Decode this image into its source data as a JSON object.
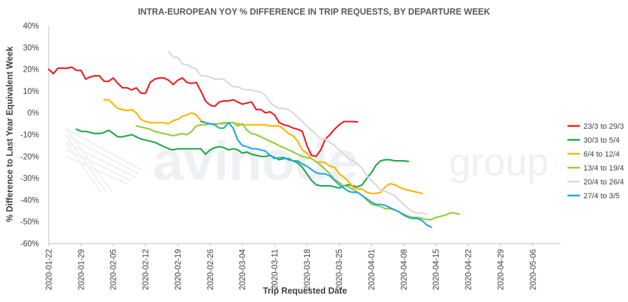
{
  "watermark": {
    "brand": "avinode",
    "suffix": "group"
  },
  "chart_data": {
    "type": "line",
    "title": "INTRA-EUROPEAN YOY % DIFFERENCE IN TRIP REQUESTS, BY DEPARTURE WEEK",
    "xlabel": "Trip Requested Date",
    "ylabel": "% Difference to Last Year Equivalent Week",
    "xlim": [
      "2020-01-22",
      "2020-05-12"
    ],
    "ylim": [
      -60,
      40
    ],
    "x_ticks": [
      "2020-01-22",
      "2020-01-29",
      "2020-02-05",
      "2020-02-12",
      "2020-02-19",
      "2020-02-26",
      "2020-03-04",
      "2020-03-11",
      "2020-03-18",
      "2020-03-25",
      "2020-04-01",
      "2020-04-08",
      "2020-04-15",
      "2020-04-22",
      "2020-04-29",
      "2020-05-06"
    ],
    "y_ticks": [
      40,
      30,
      20,
      10,
      0,
      -10,
      -20,
      -30,
      -40,
      -50,
      -60
    ],
    "y_tick_labels": [
      "40%",
      "30%",
      "20%",
      "10%",
      "0%",
      "-10%",
      "-20%",
      "-30%",
      "-40%",
      "-50%",
      "-60%"
    ],
    "grid": false,
    "legend_position": "right",
    "series": [
      {
        "name": "23/3 to 29/3",
        "color": "#ee1d1d",
        "x_start": "2020-01-22",
        "values": [
          20,
          18,
          20.5,
          20.5,
          20.5,
          21,
          19.5,
          19.5,
          15.5,
          16.5,
          17,
          17,
          14.5,
          14.5,
          16,
          13.5,
          11.5,
          11.5,
          10.5,
          11.5,
          9,
          9,
          14,
          15.5,
          16,
          16,
          15,
          13,
          15,
          16,
          14,
          13.5,
          14,
          10,
          5.5,
          3.5,
          3,
          5,
          5.5,
          5.5,
          6,
          5,
          4,
          4.5,
          5,
          1.5,
          1.5,
          0,
          0.5,
          -1,
          -4.5,
          -5.5,
          -6,
          -7,
          -7.5,
          -8.5,
          -15,
          -19.5,
          -20,
          -17,
          -12,
          -10,
          -7.5,
          -5.5,
          -4,
          -4,
          -4,
          -4.2
        ]
      },
      {
        "name": "30/3 to 5/4",
        "color": "#21a846",
        "x_start": "2020-01-28",
        "values": [
          -7.5,
          -8.5,
          -8.5,
          -9,
          -9.5,
          -9.5,
          -9,
          -8,
          -9.5,
          -11,
          -11,
          -10.5,
          -10,
          -11,
          -12,
          -12.5,
          -13,
          -13.5,
          -14.5,
          -15.5,
          -16.5,
          -17,
          -16.5,
          -16.5,
          -16.5,
          -16.5,
          -16.5,
          -16.5,
          -19,
          -17,
          -16,
          -15.5,
          -16,
          -17,
          -16.5,
          -17,
          -18.5,
          -18,
          -19,
          -19.5,
          -20,
          -20,
          -19.5,
          -20.5,
          -21.5,
          -21,
          -21,
          -22,
          -23,
          -25,
          -28,
          -31,
          -33,
          -33.5,
          -33.5,
          -33.5,
          -34,
          -34.5,
          -33.5,
          -33,
          -33.5,
          -34,
          -33,
          -30,
          -27.5,
          -24,
          -22,
          -21.5,
          -21.5,
          -22,
          -22,
          -22,
          -22.3
        ]
      },
      {
        "name": "6/4 to 12/4",
        "color": "#ffb400",
        "x_start": "2020-02-03",
        "values": [
          6,
          6,
          4,
          2,
          1.5,
          1,
          1.5,
          0,
          -3,
          -4,
          -4.5,
          -4.5,
          -4.5,
          -4.5,
          -5,
          -3.5,
          -3,
          -1.5,
          -1,
          0,
          -1,
          -3.5,
          -4.5,
          -5,
          -5.5,
          -5,
          -5,
          -4.5,
          -4.5,
          -5,
          -5.5,
          -5.5,
          -5.5,
          -5.5,
          -5.5,
          -5.5,
          -6,
          -6,
          -6,
          -7.5,
          -9.5,
          -10.5,
          -13,
          -17,
          -18.5,
          -21,
          -22.5,
          -22.5,
          -23,
          -24.5,
          -25,
          -28,
          -29.5,
          -31.5,
          -34,
          -35,
          -35,
          -36.5,
          -37,
          -37,
          -36.5,
          -34,
          -32.5,
          -33,
          -34,
          -35,
          -35.5,
          -36,
          -36.5,
          -37
        ]
      },
      {
        "name": "13/4 to 19/4",
        "color": "#8fce3a",
        "x_start": "2020-02-10",
        "values": [
          -6,
          -6.5,
          -7,
          -7.5,
          -8.5,
          -9,
          -9.5,
          -10,
          -10.5,
          -10,
          -9.5,
          -10,
          -8.5,
          -6,
          -5.5,
          -5.5,
          -5,
          -5,
          -5,
          -4.5,
          -4.5,
          -4.5,
          -6,
          -5,
          -8,
          -9.5,
          -10,
          -11,
          -12,
          -13,
          -14,
          -15,
          -16,
          -17,
          -18,
          -19,
          -20,
          -20.5,
          -21,
          -22.5,
          -24,
          -26,
          -28,
          -30.5,
          -32,
          -33.5,
          -34,
          -35,
          -36.5,
          -38,
          -40,
          -42,
          -42.5,
          -43,
          -44,
          -44,
          -44.5,
          -45.5,
          -46.5,
          -47.5,
          -48,
          -48,
          -48.5,
          -49,
          -49,
          -48,
          -47.5,
          -47,
          -46,
          -46,
          -46.5
        ]
      },
      {
        "name": "20/4 to 26/4",
        "color": "#d9d9d9",
        "x_start": "2020-02-17",
        "values": [
          28,
          25.5,
          25.5,
          22.5,
          22,
          21,
          20,
          17,
          17,
          16.5,
          15.5,
          15.5,
          15.5,
          13.5,
          12,
          12,
          11,
          10.5,
          10.5,
          10,
          9.5,
          8,
          5,
          3,
          2,
          2,
          1.5,
          0,
          -2,
          -4,
          -6,
          -8,
          -10,
          -12,
          -12,
          -13.5,
          -15,
          -17,
          -19,
          -21,
          -22,
          -23.5,
          -25.5,
          -29,
          -31,
          -33,
          -35.5,
          -36,
          -37,
          -38,
          -40,
          -42,
          -44,
          -45.5,
          -46,
          -46,
          -46.5
        ]
      },
      {
        "name": "27/4 to 3/5",
        "color": "#1fa8e2",
        "x_start": "2020-02-24",
        "values": [
          -4,
          -4.5,
          -5,
          -5.5,
          -7,
          -7,
          -4.5,
          -7,
          -12.5,
          -15,
          -15.5,
          -16.5,
          -16.5,
          -17,
          -17.5,
          -19.5,
          -21,
          -20.5,
          -20.5,
          -21.5,
          -22,
          -22,
          -23.5,
          -24.5,
          -26,
          -27.5,
          -28,
          -28,
          -29,
          -31,
          -33,
          -34.5,
          -36,
          -36.5,
          -36.5,
          -38,
          -39.5,
          -41,
          -42,
          -42,
          -42.5,
          -43.5,
          -44.5,
          -45.5,
          -47,
          -48,
          -48.5,
          -48.5,
          -49.5,
          -51.5,
          -52.5
        ]
      }
    ]
  }
}
